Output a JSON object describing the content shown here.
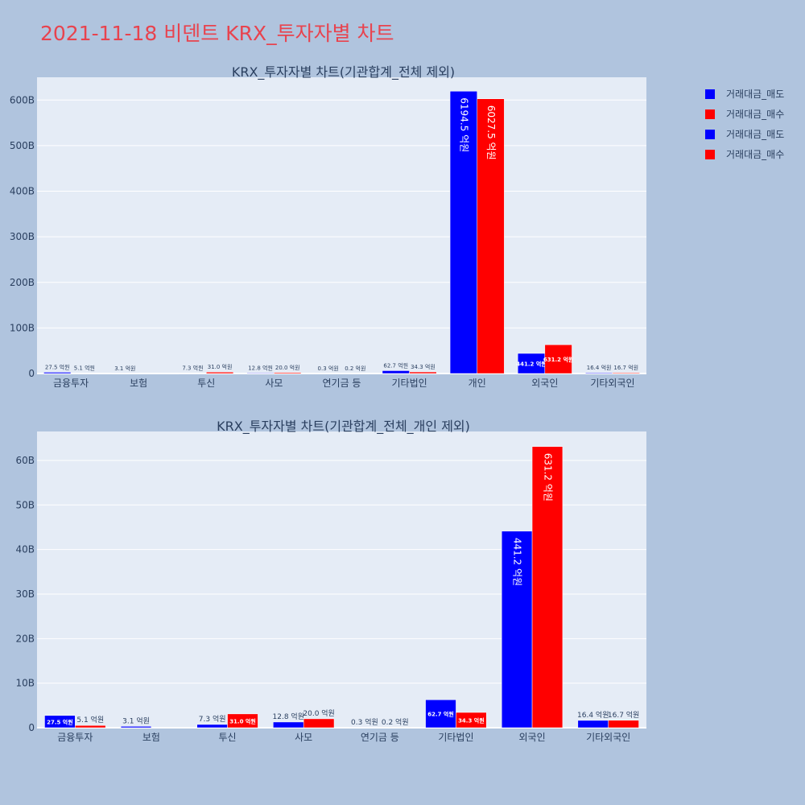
{
  "page": {
    "title": "2021-11-18 비덴트 KRX_투자자별 차트"
  },
  "colors": {
    "sell": "#0000ff",
    "buy": "#ff0000",
    "plot_bg": "#e5ecf6",
    "paper_bg": "#b0c4de",
    "title_color": "#e8434e"
  },
  "legend": [
    {
      "label": "거래대금_매도",
      "color": "#0000ff"
    },
    {
      "label": "거래대금_매수",
      "color": "#ff0000"
    },
    {
      "label": "거래대금_매도",
      "color": "#0000ff"
    },
    {
      "label": "거래대금_매수",
      "color": "#ff0000"
    }
  ],
  "chart_data": [
    {
      "type": "bar",
      "title": "KRX_투자자별 차트(기관합계_전체 제외)",
      "categories": [
        "금융투자",
        "보험",
        "투신",
        "사모",
        "연기금 등",
        "기타법인",
        "개인",
        "외국인",
        "기타외국인"
      ],
      "series": [
        {
          "name": "거래대금_매도",
          "values": [
            2.75,
            0.31,
            0.73,
            1.28,
            0.03,
            6.27,
            619.45,
            44.12,
            1.64
          ],
          "labels": [
            "27.5 억원",
            "3.1 억원",
            "7.3 억원",
            "12.8 억원",
            "0.3 억원",
            "62.7 억원",
            "6194.5 억원",
            "441.2 억원",
            "16.4 억원"
          ]
        },
        {
          "name": "거래대금_매수",
          "values": [
            0.51,
            0,
            3.1,
            2.0,
            0.02,
            3.43,
            602.75,
            63.12,
            1.67
          ],
          "labels": [
            "5.1 억원",
            "",
            "31.0 억원",
            "20.0 억원",
            "0.2 억원",
            "34.3 억원",
            "6027.5 억원",
            "631.2 억원",
            "16.7 억원"
          ]
        }
      ],
      "yticks": [
        "0",
        "100B",
        "200B",
        "300B",
        "400B",
        "500B",
        "600B"
      ],
      "ylim": [
        0,
        650
      ]
    },
    {
      "type": "bar",
      "title": "KRX_투자자별 차트(기관합계_전체_개인 제외)",
      "categories": [
        "금융투자",
        "보험",
        "투신",
        "사모",
        "연기금 등",
        "기타법인",
        "외국인",
        "기타외국인"
      ],
      "series": [
        {
          "name": "거래대금_매도",
          "values": [
            2.75,
            0.31,
            0.73,
            1.28,
            0.03,
            6.27,
            44.12,
            1.64
          ],
          "labels": [
            "27.5 억원",
            "3.1 억원",
            "7.3 억원",
            "12.8 억원",
            "0.3 억원",
            "62.7 억원",
            "441.2 억원",
            "16.4 억원"
          ]
        },
        {
          "name": "거래대금_매수",
          "values": [
            0.51,
            0,
            3.1,
            2.0,
            0.02,
            3.43,
            63.12,
            1.67
          ],
          "labels": [
            "5.1 억원",
            "",
            "31.0 억원",
            "20.0 억원",
            "0.2 억원",
            "34.3 억원",
            "631.2 억원",
            "16.7 억원"
          ]
        }
      ],
      "yticks": [
        "0",
        "10B",
        "20B",
        "30B",
        "40B",
        "50B",
        "60B"
      ],
      "ylim": [
        0,
        66.5
      ]
    }
  ]
}
